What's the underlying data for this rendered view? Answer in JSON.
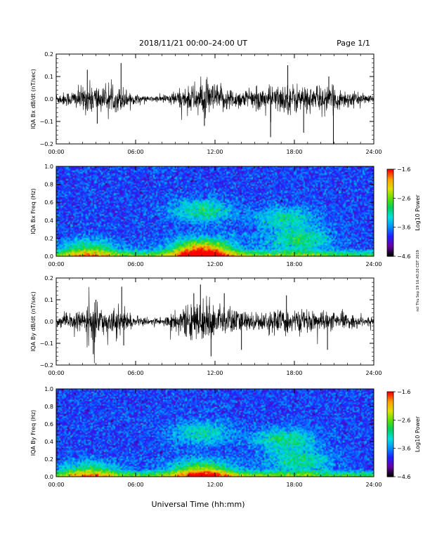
{
  "header": {
    "title": "2018/11/21  00:00–24:00 UT",
    "page": "Page 1/1"
  },
  "side_note": "ncl Thu Sep 19 16:43:20 CDT 2019",
  "chart_data": [
    {
      "type": "line",
      "ylabel": "IQA Bx dB/dt (nT/sec)",
      "xlabel": "",
      "xlim": [
        0,
        24
      ],
      "ylim": [
        -0.2,
        0.2
      ],
      "yticks": [
        -0.2,
        -0.1,
        0.0,
        0.1,
        0.2
      ],
      "ytick_labels": [
        "−0.2",
        "−0.1",
        "0.0",
        "0.1",
        "0.2"
      ],
      "xticks": [
        0,
        6,
        12,
        18,
        24
      ],
      "xtick_labels": [
        "00:00",
        "06:00",
        "12:00",
        "18:00",
        "24:00"
      ],
      "envelope": {
        "hours": [
          0,
          1,
          2,
          2.5,
          3,
          3.5,
          4,
          4.5,
          5,
          5.5,
          6,
          7,
          8,
          9,
          10,
          11,
          12,
          13,
          14,
          15,
          16,
          17,
          18,
          19,
          20,
          21,
          22,
          23,
          24
        ],
        "amplitude": [
          0.022,
          0.03,
          0.05,
          0.06,
          0.06,
          0.045,
          0.04,
          0.045,
          0.05,
          0.03,
          0.018,
          0.01,
          0.015,
          0.03,
          0.05,
          0.07,
          0.06,
          0.045,
          0.035,
          0.04,
          0.05,
          0.055,
          0.06,
          0.05,
          0.05,
          0.045,
          0.035,
          0.02,
          0.015
        ]
      },
      "spikes": [
        {
          "hour": 2.35,
          "value": 0.13
        },
        {
          "hour": 4.9,
          "value": 0.16
        },
        {
          "hour": 3.1,
          "value": -0.11
        },
        {
          "hour": 11.2,
          "value": -0.12
        },
        {
          "hour": 16.2,
          "value": -0.17
        },
        {
          "hour": 17.5,
          "value": 0.15
        },
        {
          "hour": 18.7,
          "value": -0.15
        },
        {
          "hour": 20.6,
          "value": 0.1
        },
        {
          "hour": 20.95,
          "value": -0.21
        }
      ]
    },
    {
      "type": "heatmap",
      "ylabel": "IQA Bx Freq (Hz)",
      "xlabel": "",
      "xlim": [
        0,
        24
      ],
      "ylim": [
        0.0,
        1.0
      ],
      "yticks": [
        0.0,
        0.2,
        0.4,
        0.6,
        0.8,
        1.0
      ],
      "ytick_labels": [
        "0.0",
        "0.2",
        "0.4",
        "0.6",
        "0.8",
        "1.0"
      ],
      "xticks": [
        0,
        6,
        12,
        18,
        24
      ],
      "xtick_labels": [
        "00:00",
        "06:00",
        "12:00",
        "18:00",
        "24:00"
      ],
      "colorbar": {
        "label": "Log10 Power",
        "range": [
          -4.6,
          -1.6
        ],
        "ticks": [
          -1.6,
          -2.6,
          -3.6,
          -4.6
        ],
        "tick_labels": [
          "−1.6",
          "−2.6",
          "−3.6",
          "−4.6"
        ],
        "colors": [
          "#000000",
          "#6a00a8",
          "#2020ff",
          "#0090ff",
          "#00e0e0",
          "#00d060",
          "#60e000",
          "#e0e000",
          "#ffa000",
          "#ff0000"
        ]
      },
      "features": [
        {
          "hour": 11.0,
          "freq": 0.05,
          "level": -2.0
        },
        {
          "hour": 11.0,
          "freq": 0.5,
          "level": -3.0
        },
        {
          "hour": 17.3,
          "freq": 0.42,
          "level": -3.1
        },
        {
          "hour": 18.5,
          "freq": 0.18,
          "level": -3.0
        },
        {
          "hour": 2.5,
          "freq": 0.05,
          "level": -2.8
        }
      ]
    },
    {
      "type": "line",
      "ylabel": "IQA By dB/dt (nT/sec)",
      "xlabel": "",
      "xlim": [
        0,
        24
      ],
      "ylim": [
        -0.2,
        0.2
      ],
      "yticks": [
        -0.2,
        -0.1,
        0.0,
        0.1,
        0.2
      ],
      "ytick_labels": [
        "−0.2",
        "−0.1",
        "0.0",
        "0.1",
        "0.2"
      ],
      "xticks": [
        0,
        6,
        12,
        18,
        24
      ],
      "xtick_labels": [
        "00:00",
        "06:00",
        "12:00",
        "18:00",
        "24:00"
      ],
      "envelope": {
        "hours": [
          0,
          1,
          2,
          2.5,
          3,
          3.5,
          4,
          4.5,
          5,
          5.5,
          6,
          7,
          8,
          9,
          10,
          11,
          12,
          13,
          14,
          15,
          16,
          17,
          18,
          19,
          20,
          21,
          22,
          23,
          24
        ],
        "amplitude": [
          0.02,
          0.03,
          0.045,
          0.06,
          0.07,
          0.05,
          0.045,
          0.05,
          0.06,
          0.03,
          0.02,
          0.012,
          0.02,
          0.04,
          0.065,
          0.08,
          0.07,
          0.06,
          0.045,
          0.035,
          0.04,
          0.05,
          0.045,
          0.04,
          0.04,
          0.035,
          0.03,
          0.02,
          0.015
        ]
      },
      "spikes": [
        {
          "hour": 3.0,
          "value": 0.1
        },
        {
          "hour": 2.8,
          "value": -0.15
        },
        {
          "hour": 4.95,
          "value": 0.16
        },
        {
          "hour": 5.1,
          "value": -0.11
        },
        {
          "hour": 10.4,
          "value": 0.13
        },
        {
          "hour": 10.9,
          "value": 0.17
        },
        {
          "hour": 11.7,
          "value": -0.16
        },
        {
          "hour": 12.7,
          "value": 0.13
        },
        {
          "hour": 14.0,
          "value": -0.13
        },
        {
          "hour": 17.4,
          "value": 0.12
        },
        {
          "hour": 20.5,
          "value": -0.13
        }
      ]
    },
    {
      "type": "heatmap",
      "ylabel": "IQA By Freq (Hz)",
      "xlabel": "Universal Time (hh:mm)",
      "xlim": [
        0,
        24
      ],
      "ylim": [
        0.0,
        1.0
      ],
      "yticks": [
        0.0,
        0.2,
        0.4,
        0.6,
        0.8,
        1.0
      ],
      "ytick_labels": [
        "0.0",
        "0.2",
        "0.4",
        "0.6",
        "0.8",
        "1.0"
      ],
      "xticks": [
        0,
        6,
        12,
        18,
        24
      ],
      "xtick_labels": [
        "00:00",
        "06:00",
        "12:00",
        "18:00",
        "24:00"
      ],
      "colorbar": {
        "label": "Log10 Power",
        "range": [
          -4.6,
          -1.6
        ],
        "ticks": [
          -1.6,
          -2.6,
          -3.6,
          -4.6
        ],
        "tick_labels": [
          "−1.6",
          "−2.6",
          "−3.6",
          "−4.6"
        ],
        "colors": [
          "#000000",
          "#6a00a8",
          "#2020ff",
          "#0090ff",
          "#00e0e0",
          "#00d060",
          "#60e000",
          "#e0e000",
          "#ffa000",
          "#ff0000"
        ]
      },
      "features": [
        {
          "hour": 11.0,
          "freq": 0.04,
          "level": -2.5
        },
        {
          "hour": 10.9,
          "freq": 0.5,
          "level": -3.1
        },
        {
          "hour": 17.3,
          "freq": 0.42,
          "level": -3.0
        },
        {
          "hour": 18.5,
          "freq": 0.18,
          "level": -3.1
        },
        {
          "hour": 2.5,
          "freq": 0.04,
          "level": -2.8
        }
      ]
    }
  ]
}
